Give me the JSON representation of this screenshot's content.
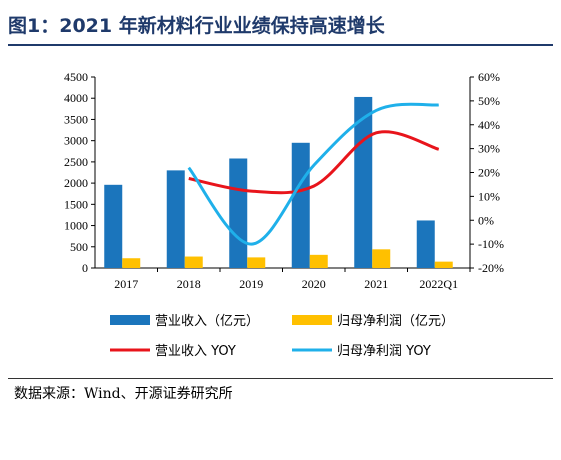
{
  "title": "图1：2021 年新材料行业业绩保持高速增长",
  "source": "数据来源：Wind、开源证券研究所",
  "colors": {
    "revenue": "#1b75bc",
    "profit": "#ffc000",
    "revenue_yoy": "#e8141b",
    "profit_yoy": "#1fb0ea",
    "title": "#1f3a6b"
  },
  "chart_data": {
    "type": "bar",
    "categories": [
      "2017",
      "2018",
      "2019",
      "2020",
      "2021",
      "2022Q1"
    ],
    "series": [
      {
        "name": "营业收入（亿元）",
        "type": "bar",
        "axis": "left",
        "values": [
          1960,
          2300,
          2580,
          2950,
          4030,
          1120
        ]
      },
      {
        "name": "归母净利润（亿元）",
        "type": "bar",
        "axis": "left",
        "values": [
          230,
          270,
          250,
          310,
          440,
          150
        ]
      },
      {
        "name": "营业收入 YOY",
        "type": "line",
        "axis": "right",
        "x": [
          "2018",
          "2019",
          "2020",
          "2021",
          "2022Q1"
        ],
        "values": [
          17.5,
          12.2,
          14.3,
          36.6,
          29.7
        ]
      },
      {
        "name": "归母净利润 YOY",
        "type": "line",
        "axis": "right",
        "x": [
          "2018",
          "2019",
          "2020",
          "2021",
          "2022Q1"
        ],
        "values": [
          22,
          -10,
          23,
          46,
          48.3
        ]
      }
    ],
    "y_left": {
      "lim": [
        0,
        4500
      ],
      "ticks": [
        "0",
        "500",
        "1000",
        "1500",
        "2000",
        "2500",
        "3000",
        "3500",
        "4000",
        "4500"
      ]
    },
    "y_right": {
      "lim": [
        -20,
        60
      ],
      "ticks": [
        "-20%",
        "-10%",
        "0%",
        "10%",
        "20%",
        "30%",
        "40%",
        "50%",
        "60%"
      ]
    },
    "grid": false,
    "legend": "bottom"
  }
}
